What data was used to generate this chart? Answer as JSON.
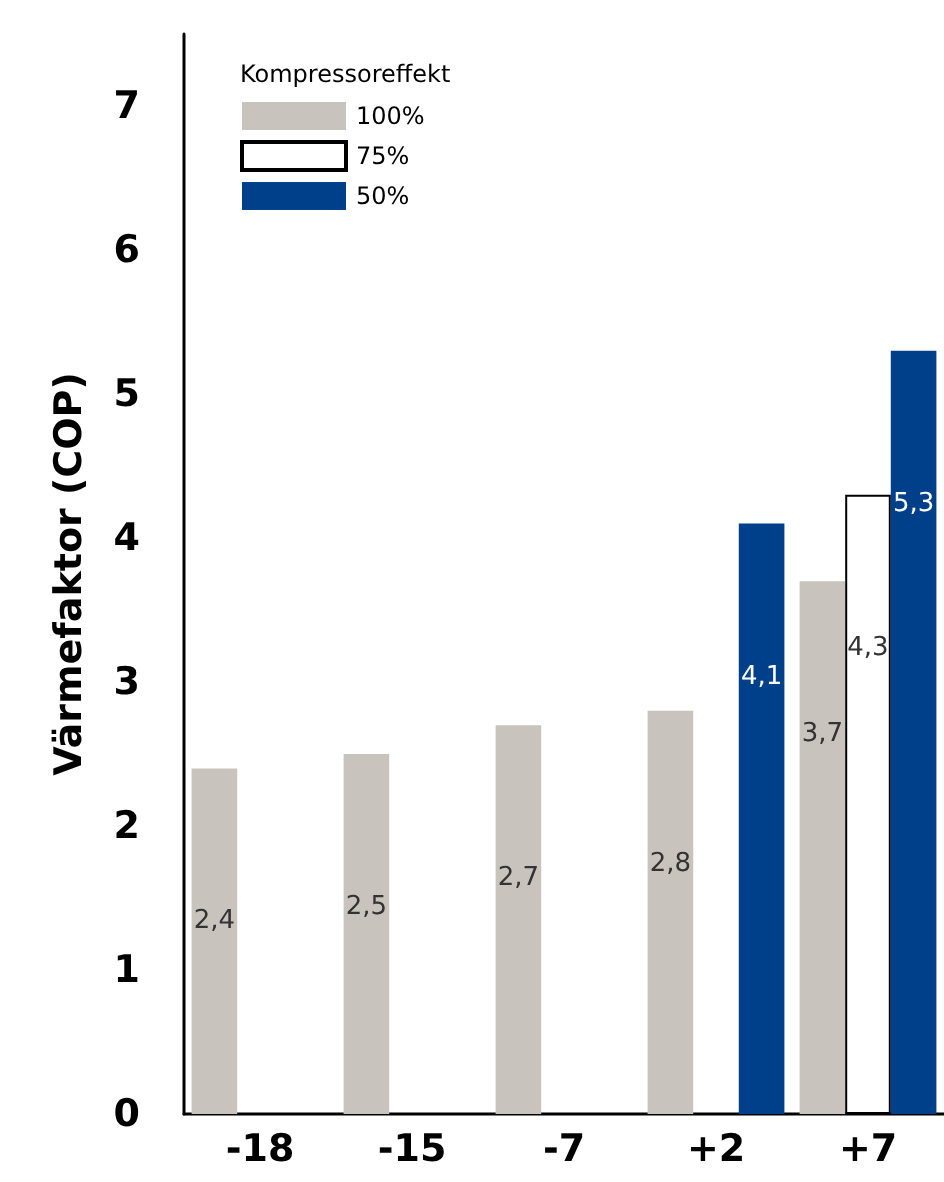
{
  "chart_data": {
    "type": "bar",
    "ylabel": "Värmefaktor (COP)",
    "legend_title": "Kompressoreffekt",
    "categories": [
      "-18",
      "-15",
      "-7",
      "+2",
      "+7"
    ],
    "series": [
      {
        "name": "100%",
        "color": "#c9c3bd",
        "values": [
          2.4,
          2.5,
          2.7,
          2.8,
          3.7
        ],
        "value_labels": [
          "2,4",
          "2,5",
          "2,7",
          "2,8",
          "3,7"
        ]
      },
      {
        "name": "75%",
        "color": "#ffffff",
        "values": [
          null,
          null,
          null,
          null,
          4.3
        ],
        "value_labels": [
          null,
          null,
          null,
          null,
          "4,3"
        ]
      },
      {
        "name": "50%",
        "color": "#003f8a",
        "values": [
          null,
          null,
          null,
          4.1,
          5.3
        ],
        "value_labels": [
          null,
          null,
          null,
          "4,1",
          "5,3"
        ]
      }
    ],
    "ylim": [
      0,
      7.5
    ],
    "yticks": [
      0,
      1,
      2,
      3,
      4,
      5,
      6,
      7
    ],
    "grid": false,
    "legend": "top left"
  }
}
